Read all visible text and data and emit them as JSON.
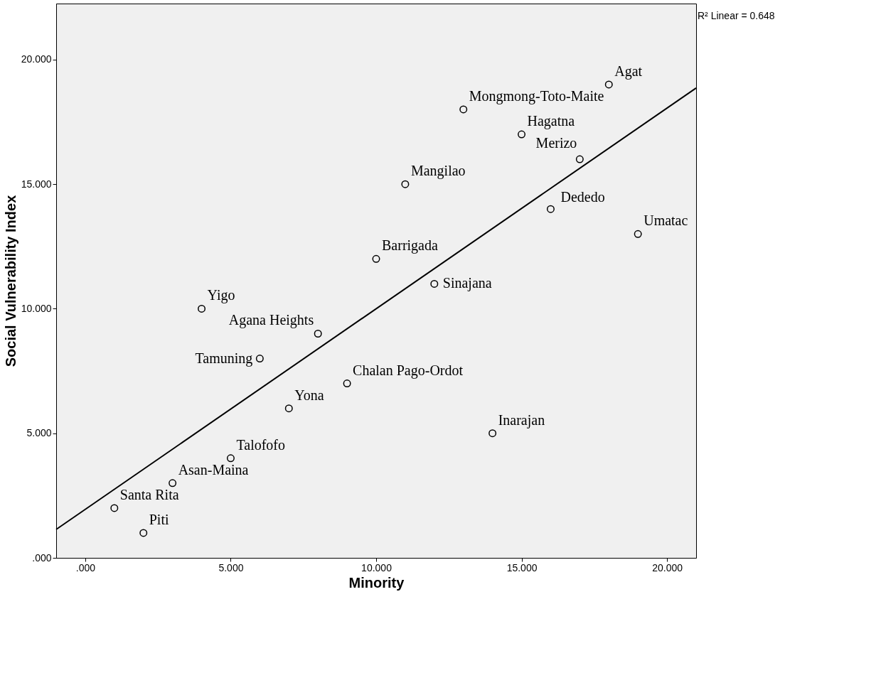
{
  "chart_data": {
    "type": "scatter",
    "xlabel": "Minority",
    "ylabel": "Social Vulnerability Index",
    "xlim": [
      -1,
      21
    ],
    "ylim": [
      0,
      22.25
    ],
    "xticks": [
      {
        "value": 0,
        "label": ".000"
      },
      {
        "value": 5,
        "label": "5.000"
      },
      {
        "value": 10,
        "label": "10.000"
      },
      {
        "value": 15,
        "label": "15.000"
      },
      {
        "value": 20,
        "label": "20.000"
      }
    ],
    "yticks": [
      {
        "value": 0,
        "label": ".000"
      },
      {
        "value": 5,
        "label": "5.000"
      },
      {
        "value": 10,
        "label": "10.000"
      },
      {
        "value": 15,
        "label": "15.000"
      },
      {
        "value": 20,
        "label": "20.000"
      }
    ],
    "grid": false,
    "series": [
      {
        "type": "scatter",
        "color": "#000000",
        "marker": "circle",
        "x": [
          1,
          2,
          3,
          4,
          5,
          6,
          7,
          8,
          9,
          10,
          11,
          12,
          13,
          14,
          15,
          16,
          17,
          18,
          19
        ],
        "values": [
          2,
          1,
          3,
          10,
          4,
          8,
          6,
          9,
          7,
          12,
          15,
          11,
          18,
          5,
          17,
          14,
          16,
          19,
          13
        ]
      },
      {
        "type": "line",
        "color": "#000000",
        "marker": "none",
        "x": [
          -1,
          21
        ],
        "values": [
          1.14,
          18.86
        ]
      }
    ],
    "annotations": [
      {
        "text": "Santa Rita",
        "x": 1,
        "y": 2
      },
      {
        "text": "Piti",
        "x": 2,
        "y": 1
      },
      {
        "text": "Asan-Maina",
        "x": 3,
        "y": 3
      },
      {
        "text": "Yigo",
        "x": 4,
        "y": 10
      },
      {
        "text": "Talofofo",
        "x": 5,
        "y": 4
      },
      {
        "text": "Tamuning",
        "x": 6,
        "y": 8
      },
      {
        "text": "Yona",
        "x": 7,
        "y": 6
      },
      {
        "text": "Agana Heights",
        "x": 8,
        "y": 9
      },
      {
        "text": "Chalan Pago-Ordot",
        "x": 9,
        "y": 7
      },
      {
        "text": "Barrigada",
        "x": 10,
        "y": 12
      },
      {
        "text": "Mangilao",
        "x": 11,
        "y": 15
      },
      {
        "text": "Sinajana",
        "x": 12,
        "y": 11
      },
      {
        "text": "Mongmong-Toto-Maite",
        "x": 13,
        "y": 18
      },
      {
        "text": "Inarajan",
        "x": 14,
        "y": 5
      },
      {
        "text": "Hagatna",
        "x": 15,
        "y": 17
      },
      {
        "text": "Dededo",
        "x": 16,
        "y": 14
      },
      {
        "text": "Merizo",
        "x": 17,
        "y": 16
      },
      {
        "text": "Agat",
        "x": 18,
        "y": 19
      },
      {
        "text": "Umatac",
        "x": 19,
        "y": 13
      },
      "R² Linear = 0.648"
    ]
  }
}
